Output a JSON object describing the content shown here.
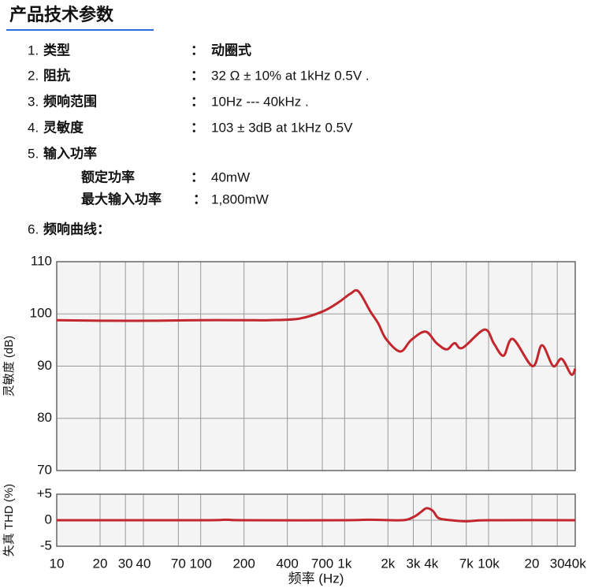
{
  "header": {
    "title": "产品技术参数"
  },
  "specs": [
    {
      "num": "1.",
      "label": "类型",
      "sep": "：",
      "value": "动圈式"
    },
    {
      "num": "2.",
      "label": "阻抗",
      "sep": "：",
      "value": "32 Ω ± 10% at 1kHz 0.5V ."
    },
    {
      "num": "3.",
      "label": "频响范围",
      "sep": "：",
      "value": "10Hz --- 40kHz ."
    },
    {
      "num": "4.",
      "label": "灵敏度",
      "sep": "：",
      "value": "103 ± 3dB at 1kHz 0.5V"
    },
    {
      "num": "5.",
      "label": "输入功率"
    }
  ],
  "power": [
    {
      "label": "额定功率",
      "sep": "：",
      "value": "40mW"
    },
    {
      "label": "最大输入功率",
      "sep": "：",
      "value": "1,800mW"
    }
  ],
  "curve_heading": {
    "num": "6.",
    "label": "频响曲线："
  },
  "chart_data": [
    {
      "type": "line",
      "ylabel": "灵敏度 (dB)",
      "xscale": "log",
      "grid": true,
      "color": "#c1272d",
      "x": [
        10,
        20,
        50,
        100,
        200,
        300,
        485,
        708,
        916,
        1100,
        1248,
        1507,
        1710,
        1940,
        2432,
        2900,
        3650,
        4350,
        5118,
        5800,
        6600,
        9370,
        10900,
        12700,
        14750,
        20200,
        23500,
        28100,
        32200,
        37500,
        40000
      ],
      "values": [
        98.8,
        98.7,
        98.7,
        98.8,
        98.8,
        98.8,
        99.1,
        100.5,
        102.3,
        103.9,
        104.3,
        100.5,
        98.2,
        95.2,
        92.8,
        95.0,
        96.6,
        94.4,
        93.2,
        94.4,
        93.5,
        97.0,
        94.3,
        92.0,
        95.2,
        90.0,
        94.0,
        90.0,
        91.4,
        88.4,
        89.5
      ],
      "xlim": [
        10,
        40000
      ],
      "ylim": [
        70,
        110
      ],
      "yticks": [
        70,
        80,
        90,
        100,
        110
      ],
      "xticks": [
        10,
        20,
        30,
        40,
        70,
        100,
        200,
        400,
        700,
        1000,
        2000,
        3000,
        4000,
        7000,
        10000,
        20000,
        30000,
        40000
      ]
    },
    {
      "type": "line",
      "ylabel": "失真 THD (%)",
      "xlabel": "频率 (Hz)",
      "xscale": "log",
      "grid": true,
      "color": "#c1272d",
      "x": [
        10,
        100,
        150,
        200,
        1000,
        1500,
        2500,
        3000,
        3400,
        3700,
        4100,
        4500,
        5500,
        7000,
        10000,
        40000
      ],
      "values": [
        0,
        0,
        0.1,
        0,
        0,
        0.1,
        0,
        0.6,
        1.6,
        2.3,
        1.8,
        0.4,
        0,
        -0.2,
        0,
        0
      ],
      "xlim": [
        10,
        40000
      ],
      "ylim": [
        -5,
        5
      ],
      "yticks": [
        {
          "value": -5,
          "label": "-5"
        },
        0,
        {
          "value": 5,
          "label": "+5"
        }
      ],
      "xticks": [
        10,
        20,
        30,
        40,
        70,
        100,
        200,
        400,
        700,
        {
          "value": 1000,
          "label": "1k"
        },
        {
          "value": 2000,
          "label": "2k"
        },
        {
          "value": 3000,
          "label": "3k"
        },
        {
          "value": 4000,
          "label": "4k"
        },
        {
          "value": 7000,
          "label": "7k"
        },
        {
          "value": 10000,
          "label": "10k"
        },
        {
          "value": 20000,
          "label": "20"
        },
        {
          "value": 30000,
          "label": "30"
        },
        {
          "value": 40000,
          "label": "40k"
        }
      ]
    }
  ]
}
